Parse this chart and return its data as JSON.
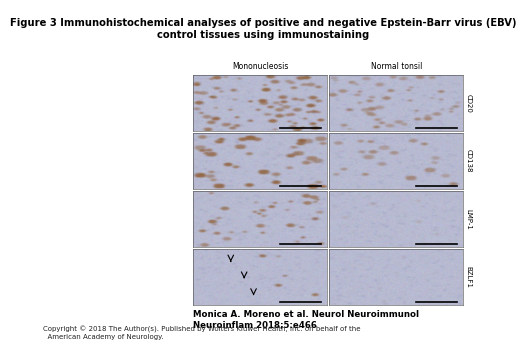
{
  "title_line1": "Figure 3 Immunohistochemical analyses of positive and negative Epstein-Barr virus (EBV)",
  "title_line2": "control tissues using immunostaining",
  "title_fontsize": 7.2,
  "title_fontweight": "bold",
  "col_labels": [
    "Mononucleosis",
    "Normal tonsil"
  ],
  "row_labels": [
    "CD20",
    "CD138",
    "LMP-1",
    "BZLF1"
  ],
  "citation_line1": "Monica A. Moreno et al. Neurol Neuroimmunol",
  "citation_line2": "Neuroinflam 2018;5:e466",
  "copyright": "Copyright © 2018 The Author(s). Published by Wolters Kluwer Health, Inc. on behalf of the\n  American Academy of Neurology.",
  "col_label_fontsize": 5.5,
  "row_label_fontsize": 5.0,
  "citation_fontsize": 6.2,
  "copyright_fontsize": 5.0,
  "n_rows": 4,
  "n_cols": 2,
  "bg_color": "#ffffff"
}
